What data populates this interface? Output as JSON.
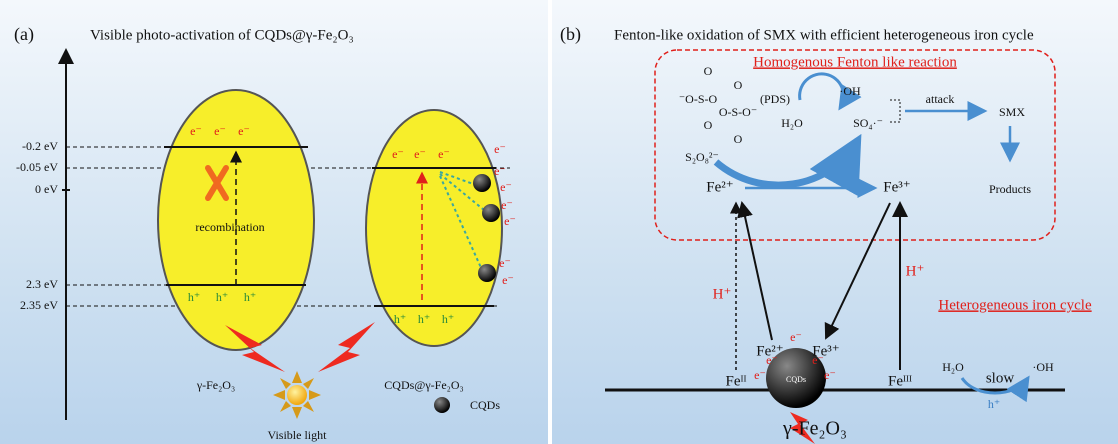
{
  "panel_a": {
    "label": "(a)",
    "title": "Visible photo-activation of CQDs@γ-Fe₂O₃",
    "energy_levels": [
      "-0.2 eV",
      "-0.05 eV",
      "0 eV",
      "2.3 eV",
      "2.35 eV"
    ],
    "bare": {
      "electrons": [
        "e⁻",
        "e⁻",
        "e⁻"
      ],
      "holes": [
        "h⁺",
        "h⁺",
        "h⁺"
      ],
      "process": "recombination",
      "caption": "γ-Fe₂O₃"
    },
    "composite": {
      "electrons": [
        "e⁻",
        "e⁻",
        "e⁻",
        "e⁻"
      ],
      "transferred": [
        "e⁻",
        "e⁻",
        "e⁻",
        "e⁻",
        "e⁻",
        "e⁻"
      ],
      "holes": [
        "h⁺",
        "h⁺",
        "h⁺"
      ],
      "caption": "CQDs@γ-Fe₂O₃"
    },
    "light": "Visible light",
    "legend": "CQDs"
  },
  "panel_b": {
    "label": "(b)",
    "title": "Fenton-like oxidation of SMX with efficient heterogeneous iron cycle",
    "homogeneous": {
      "title": "Homogenous Fenton like reaction",
      "pds_structure": [
        "O",
        "O",
        "⁻O-S-O",
        "O-S-O⁻",
        "O",
        "O"
      ],
      "pds_label": "(PDS)",
      "persulfate": "S₂O₈²⁻",
      "water": "H₂O",
      "hydroxyl": "·OH",
      "sulfate": "SO₄·⁻",
      "attack": "attack",
      "target": "SMX",
      "products": "Products",
      "fe2": "Fe²⁺",
      "fe3": "Fe³⁺"
    },
    "heterogeneous": {
      "title": "Heterogeneous iron cycle",
      "protons": [
        "H⁺",
        "H⁺"
      ],
      "fe_ii": "Feᴵᴵ",
      "fe_iii": "Feᴵᴵᴵ",
      "surface_fe2": "Fe²⁺",
      "surface_fe3": "Fe³⁺",
      "electrons": [
        "e⁻",
        "e⁻",
        "e⁻",
        "e⁻",
        "e⁻"
      ],
      "cqd": "CQDs",
      "water": "H₂O",
      "slow": "slow",
      "hydroxyl": "·OH",
      "hole": "h⁺",
      "substrate": "γ-Fe₂O₃"
    }
  }
}
